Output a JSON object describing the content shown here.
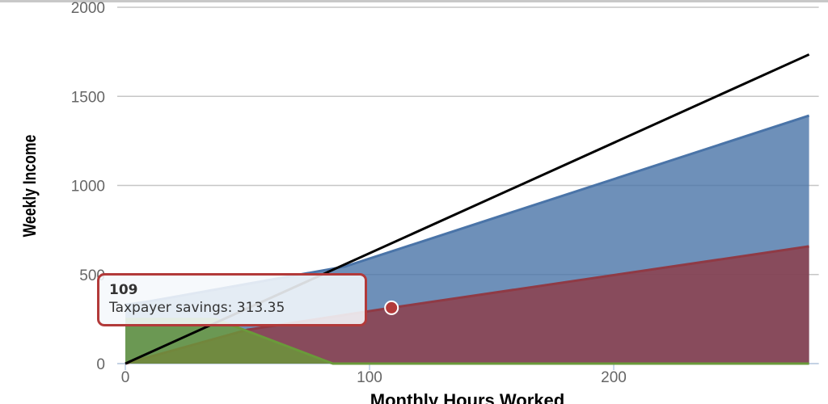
{
  "chart_data": {
    "type": "area",
    "xlabel": "Monthly Hours Worked",
    "ylabel": "Weekly Income",
    "xlim": [
      0,
      280
    ],
    "ylim": [
      0,
      2000
    ],
    "x_ticks": [
      "0",
      "100",
      "200"
    ],
    "y_ticks": [
      "0",
      "500",
      "1000",
      "1500",
      "2000"
    ],
    "grid": "horizontal",
    "series": [
      {
        "type": "area",
        "color": "#4a74a8",
        "points": [
          [
            0,
            330
          ],
          [
            10,
            350
          ],
          [
            90,
            545
          ],
          [
            280,
            1392
          ]
        ]
      },
      {
        "type": "area",
        "color": "#8f3a45",
        "points": [
          [
            0,
            0
          ],
          [
            50,
            190
          ],
          [
            109,
            313.35
          ],
          [
            280,
            658
          ]
        ]
      },
      {
        "type": "area",
        "color": "#6a9a3a",
        "points": [
          [
            0,
            250
          ],
          [
            37,
            250
          ],
          [
            85,
            0
          ],
          [
            280,
            0
          ]
        ]
      },
      {
        "type": "line",
        "color": "#000000",
        "points": [
          [
            0,
            0
          ],
          [
            280,
            1735
          ]
        ]
      }
    ],
    "tooltip": {
      "title": "109",
      "label": "Taxpayer savings: 313.35",
      "x": 109,
      "y": 313.35,
      "color": "#b23a3a"
    }
  }
}
